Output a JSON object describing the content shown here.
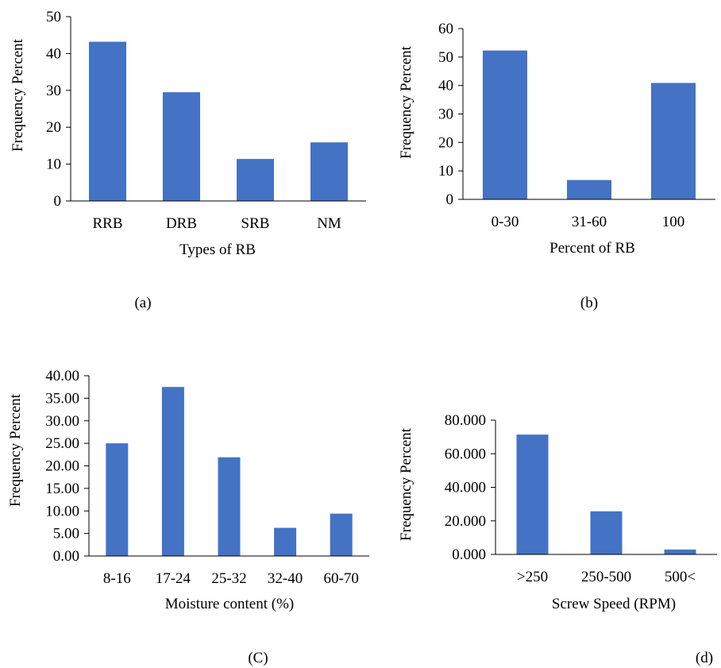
{
  "bar_color": "#4472C4",
  "axis_color": "#000000",
  "chart_data": [
    {
      "type": "bar",
      "panel_label": "(a)",
      "xlabel": "Types of RB",
      "ylabel": "Frequency Percent",
      "categories": [
        "RRB",
        "DRB",
        "SRB",
        "NM"
      ],
      "values": [
        43.2,
        29.5,
        11.4,
        15.9
      ],
      "ylim": [
        0,
        50
      ],
      "yticks": [
        "0",
        "10",
        "20",
        "30",
        "40",
        "50"
      ],
      "grid": false
    },
    {
      "type": "bar",
      "panel_label": "(b)",
      "xlabel": "Percent of RB",
      "ylabel": "Frequency Percent",
      "categories": [
        "0-30",
        "31-60",
        "100"
      ],
      "values": [
        52.3,
        6.8,
        40.9
      ],
      "ylim": [
        0,
        60
      ],
      "yticks": [
        "0",
        "10",
        "20",
        "30",
        "40",
        "50",
        "60"
      ],
      "grid": false
    },
    {
      "type": "bar",
      "panel_label": "(C)",
      "xlabel": "Moisture content (%)",
      "ylabel": "Frequency Percent",
      "categories": [
        "8-16",
        "17-24",
        "25-32",
        "32-40",
        "60-70"
      ],
      "values": [
        25.0,
        37.5,
        21.9,
        6.25,
        9.4
      ],
      "ylim": [
        0,
        40
      ],
      "yticks": [
        "0.00",
        "5.00",
        "10.00",
        "15.00",
        "20.00",
        "25.00",
        "30.00",
        "35.00",
        "40.00"
      ],
      "grid": false
    },
    {
      "type": "bar",
      "panel_label": "(d)",
      "xlabel": "Screw Speed (RPM)",
      "ylabel": "Frequency Percent",
      "categories": [
        ">250",
        "250-500",
        "500<"
      ],
      "values": [
        71.4,
        25.7,
        2.9
      ],
      "ylim": [
        0,
        80
      ],
      "yticks": [
        "0.000",
        "20.000",
        "40.000",
        "60.000",
        "80.000"
      ],
      "grid": false
    }
  ]
}
